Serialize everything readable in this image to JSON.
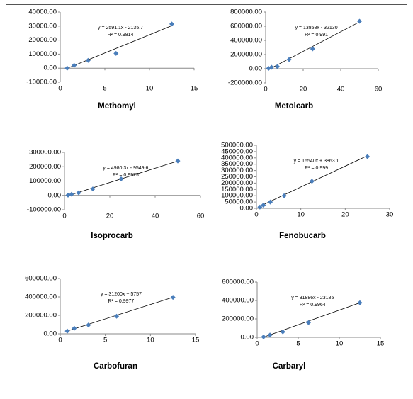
{
  "chart_data": [
    {
      "type": "scatter",
      "title": "Methomyl",
      "equation": "y = 2591.1x - 2135.7",
      "r_squared": "R² = 0.9814",
      "trendline": {
        "slope": 2591.1,
        "intercept": -2135.7
      },
      "color": "#4a7ebb",
      "x": [
        0.78,
        1.56,
        3.125,
        6.25,
        12.5
      ],
      "values": [
        0,
        2000,
        5500,
        10500,
        31500
      ],
      "xlim": [
        0,
        15
      ],
      "xticks": [
        0,
        5,
        10,
        15
      ],
      "ylim": [
        -10000,
        40000
      ],
      "yticks": [
        {
          "value": -10000,
          "label": "-10000.00"
        },
        {
          "value": 0,
          "label": "0.00"
        },
        {
          "value": 10000,
          "label": "10000.00"
        },
        {
          "value": 20000,
          "label": "20000.00"
        },
        {
          "value": 30000,
          "label": "30000.00"
        },
        {
          "value": 40000,
          "label": "40000.00"
        }
      ]
    },
    {
      "type": "scatter",
      "title": "Metolcarb",
      "equation": "y = 13858x - 32130",
      "r_squared": "R² = 0.991",
      "trendline": {
        "slope": 13858,
        "intercept": -32130
      },
      "color": "#4a7ebb",
      "x": [
        1.56,
        3.125,
        6.25,
        12.5,
        25,
        50
      ],
      "values": [
        5000,
        20000,
        30000,
        130000,
        280000,
        670000
      ],
      "xlim": [
        0,
        60
      ],
      "xticks": [
        0,
        20,
        40,
        60
      ],
      "ylim": [
        -200000,
        800000
      ],
      "yticks": [
        {
          "value": -200000,
          "label": "-200000.00"
        },
        {
          "value": 0,
          "label": "0.00"
        },
        {
          "value": 200000,
          "label": "200000.00"
        },
        {
          "value": 400000,
          "label": "400000.00"
        },
        {
          "value": 600000,
          "label": "600000.00"
        },
        {
          "value": 800000,
          "label": "800000.00"
        }
      ]
    },
    {
      "type": "scatter",
      "title": "Isoprocarb",
      "equation": "y = 4980.3x - 9549.6",
      "r_squared": "R² = 0.9975",
      "trendline": {
        "slope": 4980.3,
        "intercept": -9549.6
      },
      "color": "#4a7ebb",
      "x": [
        1.56,
        3.125,
        6.25,
        12.5,
        25,
        50
      ],
      "values": [
        2000,
        8000,
        18000,
        45000,
        115000,
        240000
      ],
      "xlim": [
        0,
        60
      ],
      "xticks": [
        0,
        20,
        40,
        60
      ],
      "ylim": [
        -100000,
        300000
      ],
      "yticks": [
        {
          "value": -100000,
          "label": "-100000.00"
        },
        {
          "value": 0,
          "label": "0.00"
        },
        {
          "value": 100000,
          "label": "100000.00"
        },
        {
          "value": 200000,
          "label": "200000.00"
        },
        {
          "value": 300000,
          "label": "300000.00"
        }
      ]
    },
    {
      "type": "scatter",
      "title": "Fenobucarb",
      "equation": "y = 16540x + 3863.1",
      "r_squared": "R² = 0.999",
      "trendline": {
        "slope": 16540,
        "intercept": 3863.1
      },
      "color": "#4a7ebb",
      "x": [
        0.78,
        1.56,
        3.125,
        6.25,
        12.5,
        25
      ],
      "values": [
        10000,
        25000,
        50000,
        100000,
        215000,
        410000
      ],
      "xlim": [
        0,
        30
      ],
      "xticks": [
        0,
        10,
        20,
        30
      ],
      "ylim": [
        0,
        500000
      ],
      "yticks": [
        {
          "value": 0,
          "label": "0.00"
        },
        {
          "value": 50000,
          "label": "50000.00"
        },
        {
          "value": 100000,
          "label": "100000.00"
        },
        {
          "value": 150000,
          "label": "150000.00"
        },
        {
          "value": 200000,
          "label": "200000.00"
        },
        {
          "value": 250000,
          "label": "250000.00"
        },
        {
          "value": 300000,
          "label": "300000.00"
        },
        {
          "value": 350000,
          "label": "350000.00"
        },
        {
          "value": 400000,
          "label": "400000.00"
        },
        {
          "value": 450000,
          "label": "450000.00"
        },
        {
          "value": 500000,
          "label": "500000.00"
        }
      ]
    },
    {
      "type": "scatter",
      "title": "Carbofuran",
      "equation": "y = 31200x + 5757",
      "r_squared": "R² = 0.9977",
      "trendline": {
        "slope": 31200,
        "intercept": 5757
      },
      "color": "#4a7ebb",
      "x": [
        0.78,
        1.56,
        3.125,
        6.25,
        12.5
      ],
      "values": [
        30000,
        60000,
        95000,
        190000,
        395000
      ],
      "xlim": [
        0,
        15
      ],
      "xticks": [
        0,
        5,
        10,
        15
      ],
      "ylim": [
        0,
        600000
      ],
      "yticks": [
        {
          "value": 0,
          "label": "0.00"
        },
        {
          "value": 200000,
          "label": "200000.00"
        },
        {
          "value": 400000,
          "label": "400000.00"
        },
        {
          "value": 600000,
          "label": "600000.00"
        }
      ]
    },
    {
      "type": "scatter",
      "title": "Carbaryl",
      "equation": "y = 31886x - 23185",
      "r_squared": "R² = 0.9964",
      "trendline": {
        "slope": 31886,
        "intercept": -23185
      },
      "color": "#4a7ebb",
      "x": [
        0.78,
        1.56,
        3.125,
        6.25,
        12.5
      ],
      "values": [
        5000,
        25000,
        60000,
        160000,
        375000
      ],
      "xlim": [
        0,
        15
      ],
      "xticks": [
        0,
        5,
        10,
        15
      ],
      "ylim": [
        0,
        600000
      ],
      "yticks": [
        {
          "value": 0,
          "label": "0.00"
        },
        {
          "value": 200000,
          "label": "200000.00"
        },
        {
          "value": 400000,
          "label": "400000.00"
        },
        {
          "value": 600000,
          "label": "600000.00"
        }
      ]
    }
  ]
}
